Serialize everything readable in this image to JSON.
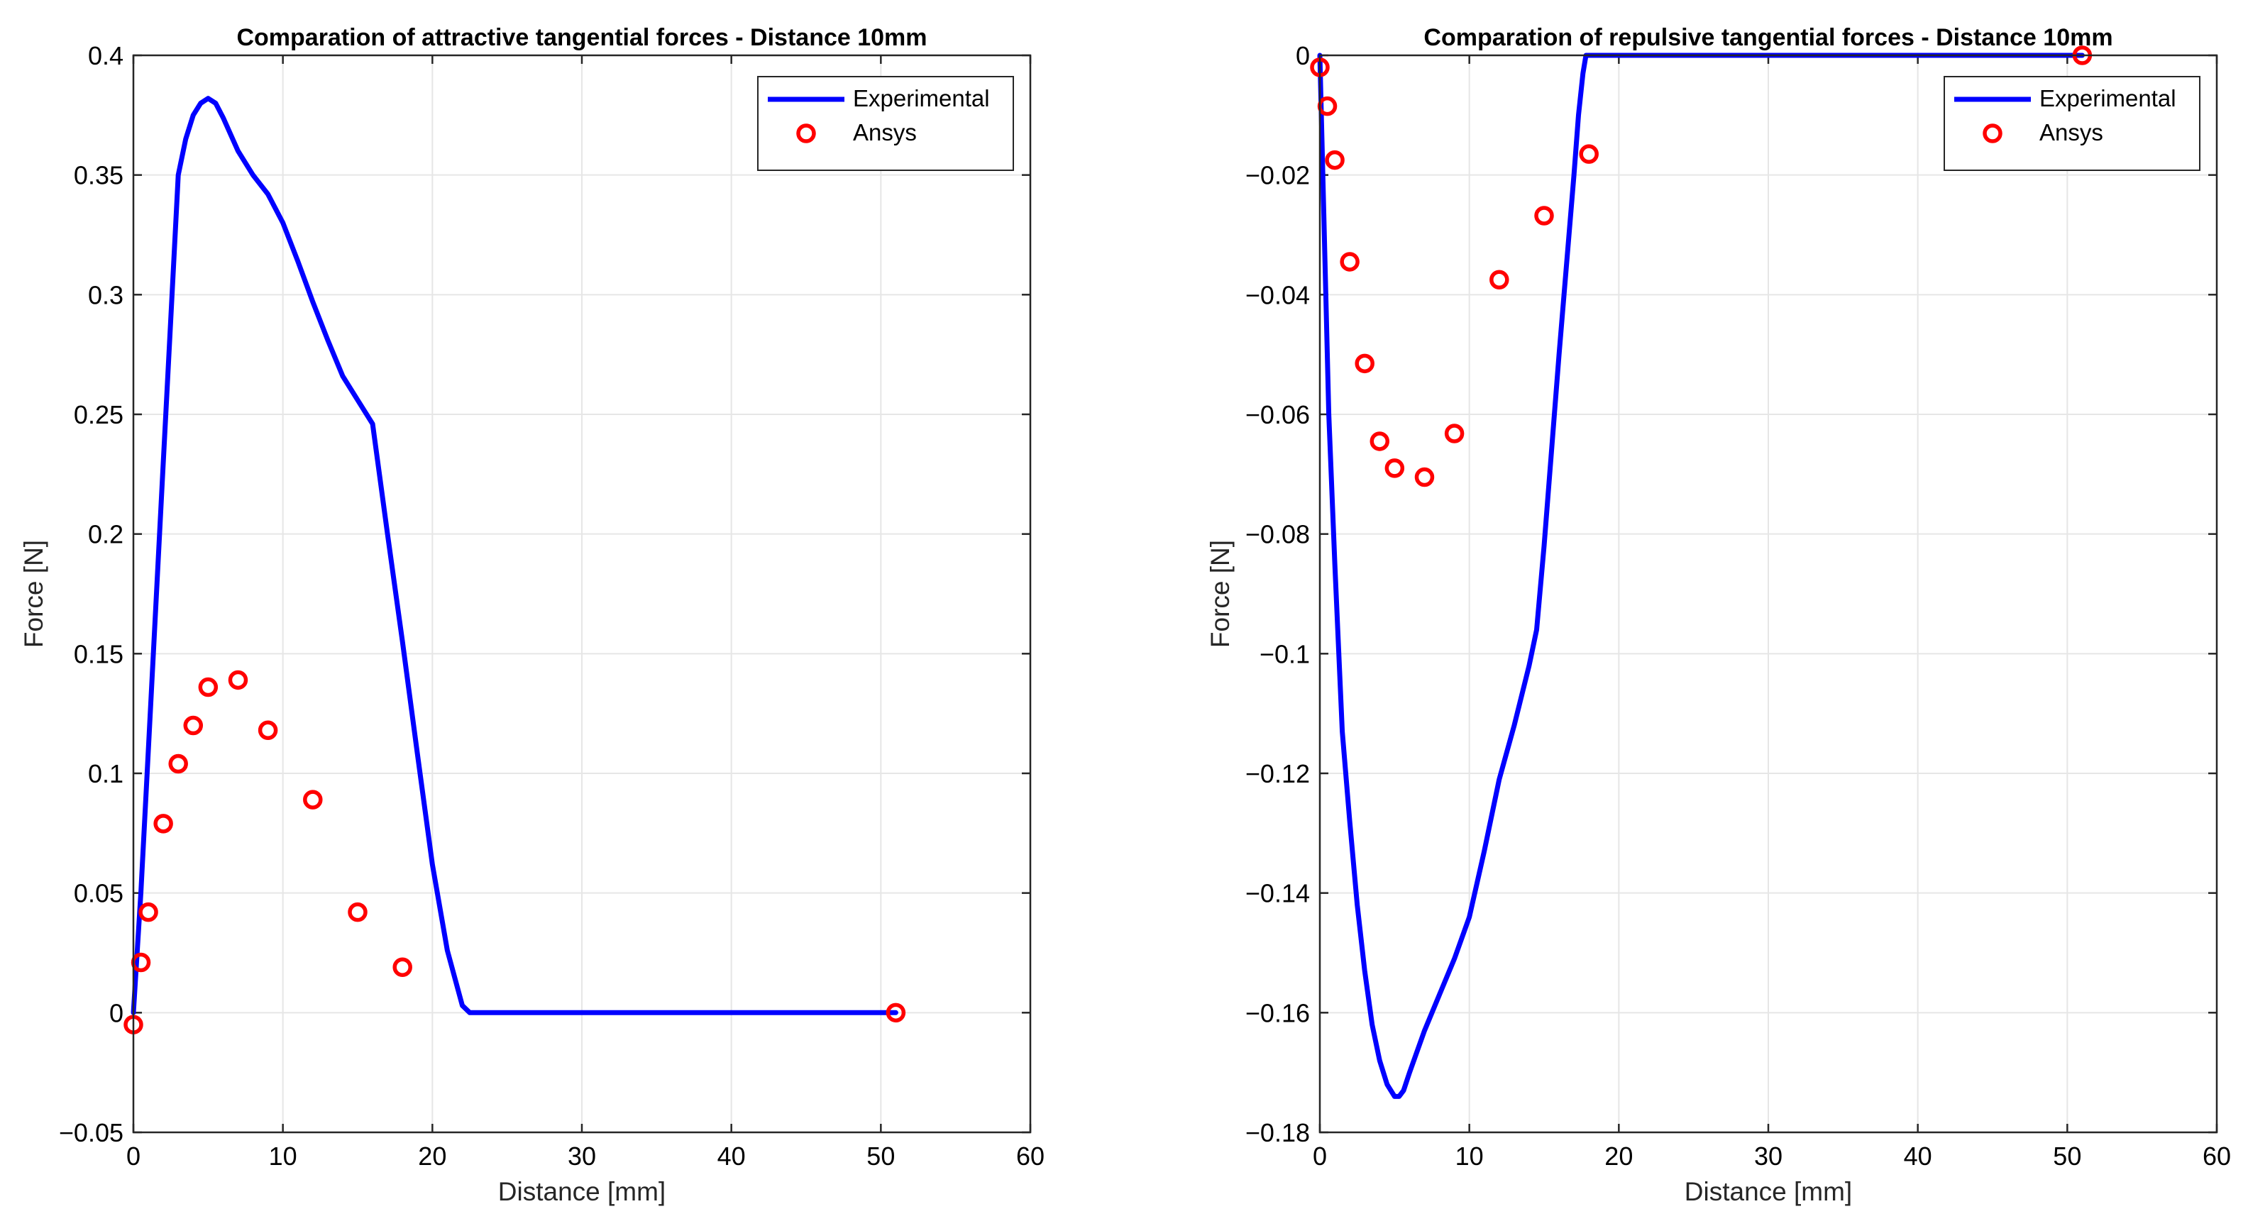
{
  "chart_data": [
    {
      "type": "line",
      "title": "Comparation of attractive tangential forces - Distance 10mm",
      "xlabel": "Distance [mm]",
      "ylabel": "Force [N]",
      "xlim": [
        0,
        60
      ],
      "ylim": [
        -0.05,
        0.4
      ],
      "xticks": [
        0,
        10,
        20,
        30,
        40,
        50,
        60
      ],
      "xtick_labels": [
        "0",
        "10",
        "20",
        "30",
        "40",
        "50",
        "60"
      ],
      "yticks": [
        -0.05,
        0,
        0.05,
        0.1,
        0.15,
        0.2,
        0.25,
        0.3,
        0.35,
        0.4
      ],
      "ytick_labels": [
        "−0.05",
        "0",
        "0.05",
        "0.1",
        "0.15",
        "0.2",
        "0.25",
        "0.3",
        "0.35",
        "0.4"
      ],
      "grid": true,
      "legend_position": "top-right",
      "series": [
        {
          "name": "Experimental",
          "kind": "line",
          "color": "#0000ff",
          "x": [
            0,
            0.5,
            1,
            1.5,
            2,
            2.5,
            3,
            3.5,
            4,
            4.5,
            5,
            5.5,
            6,
            7,
            8,
            9,
            10,
            11,
            12,
            13,
            14,
            15,
            16,
            17,
            18,
            19,
            20,
            21,
            22,
            22.5,
            30,
            40,
            51
          ],
          "y": [
            0,
            0.05,
            0.11,
            0.17,
            0.23,
            0.29,
            0.35,
            0.365,
            0.375,
            0.38,
            0.382,
            0.38,
            0.374,
            0.36,
            0.35,
            0.342,
            0.33,
            0.314,
            0.297,
            0.281,
            0.266,
            0.256,
            0.246,
            0.2,
            0.155,
            0.108,
            0.062,
            0.026,
            0.003,
            0,
            0,
            0,
            0
          ]
        },
        {
          "name": "Ansys",
          "kind": "scatter",
          "color": "#ff0000",
          "x": [
            0,
            0.5,
            1,
            2,
            3,
            4,
            5,
            7,
            9,
            12,
            15,
            18,
            51
          ],
          "y": [
            -0.005,
            0.021,
            0.042,
            0.079,
            0.104,
            0.12,
            0.136,
            0.139,
            0.118,
            0.089,
            0.042,
            0.019,
            0
          ]
        }
      ]
    },
    {
      "type": "line",
      "title": "Comparation of repulsive tangential forces - Distance 10mm",
      "xlabel": "Distance [mm]",
      "ylabel": "Force [N]",
      "xlim": [
        0,
        60
      ],
      "ylim": [
        -0.18,
        0
      ],
      "xticks": [
        0,
        10,
        20,
        30,
        40,
        50,
        60
      ],
      "xtick_labels": [
        "0",
        "10",
        "20",
        "30",
        "40",
        "50",
        "60"
      ],
      "yticks": [
        -0.18,
        -0.16,
        -0.14,
        -0.12,
        -0.1,
        -0.08,
        -0.06,
        -0.04,
        -0.02,
        0
      ],
      "ytick_labels": [
        "−0.18",
        "−0.16",
        "−0.14",
        "−0.12",
        "−0.1",
        "−0.08",
        "−0.06",
        "−0.04",
        "−0.02",
        "0"
      ],
      "grid": true,
      "legend_position": "top-right",
      "series": [
        {
          "name": "Experimental",
          "kind": "line",
          "color": "#0000ff",
          "x": [
            0,
            0.3,
            0.6,
            1,
            1.5,
            2,
            2.5,
            3,
            3.5,
            4,
            4.5,
            5,
            5.3,
            5.6,
            6,
            7,
            8,
            9,
            10,
            11,
            12,
            13,
            14,
            14.5,
            15,
            16,
            17,
            17.3,
            17.6,
            17.8,
            20,
            30,
            40,
            51
          ],
          "y": [
            0,
            -0.03,
            -0.06,
            -0.085,
            -0.113,
            -0.128,
            -0.142,
            -0.153,
            -0.162,
            -0.168,
            -0.172,
            -0.174,
            -0.174,
            -0.173,
            -0.17,
            -0.163,
            -0.157,
            -0.151,
            -0.144,
            -0.133,
            -0.121,
            -0.112,
            -0.102,
            -0.096,
            -0.082,
            -0.05,
            -0.02,
            -0.01,
            -0.003,
            0,
            0,
            0,
            0,
            0
          ]
        },
        {
          "name": "Ansys",
          "kind": "scatter",
          "color": "#ff0000",
          "x": [
            0,
            0.5,
            1,
            2,
            3,
            4,
            5,
            7,
            9,
            12,
            15,
            18,
            51
          ],
          "y": [
            -0.002,
            -0.0085,
            -0.0175,
            -0.0345,
            -0.0515,
            -0.0645,
            -0.069,
            -0.0705,
            -0.0632,
            -0.0375,
            -0.0268,
            -0.0165,
            0
          ]
        }
      ]
    }
  ]
}
